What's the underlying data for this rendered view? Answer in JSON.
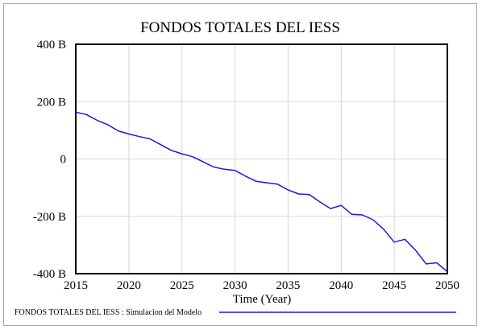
{
  "chart_data": {
    "type": "line",
    "title": "FONDOS TOTALES DEL IESS",
    "xlabel": "Time (Year)",
    "ylabel": "",
    "xlim": [
      2015,
      2050
    ],
    "ylim": [
      -400,
      400
    ],
    "x_ticks": [
      2015,
      2020,
      2025,
      2030,
      2035,
      2040,
      2045,
      2050
    ],
    "y_ticks": [
      {
        "value": 400,
        "label": "400 B"
      },
      {
        "value": 200,
        "label": "200 B"
      },
      {
        "value": 0,
        "label": "0"
      },
      {
        "value": -200,
        "label": "-200 B"
      },
      {
        "value": -400,
        "label": "-400 B"
      }
    ],
    "grid": true,
    "legend_position": "bottom-left",
    "series": [
      {
        "name": "FONDOS TOTALES DEL IESS : Simulacion del Modelo",
        "color": "#1a1adc",
        "x": [
          2015,
          2016,
          2017,
          2018,
          2019,
          2020,
          2021,
          2022,
          2023,
          2024,
          2025,
          2026,
          2027,
          2028,
          2029,
          2030,
          2031,
          2032,
          2033,
          2034,
          2035,
          2036,
          2037,
          2038,
          2039,
          2040,
          2041,
          2042,
          2043,
          2044,
          2045,
          2046,
          2047,
          2048,
          2049,
          2050
        ],
        "values": [
          163,
          155,
          135,
          120,
          98,
          87,
          78,
          70,
          50,
          30,
          18,
          8,
          -10,
          -28,
          -36,
          -40,
          -60,
          -78,
          -83,
          -88,
          -108,
          -122,
          -124,
          -150,
          -173,
          -162,
          -193,
          -195,
          -212,
          -245,
          -290,
          -280,
          -318,
          -366,
          -362,
          -393
        ]
      }
    ]
  }
}
